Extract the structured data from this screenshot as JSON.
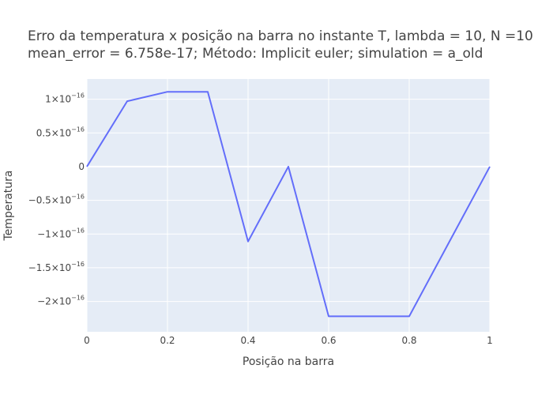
{
  "chart_data": {
    "type": "line",
    "title": {
      "line1": "Erro da temperatura x posição na barra no instante T, lambda = 10, N =10",
      "line2": "mean_error = 6.758e-17; Método: Implicit euler; simulation = a_old"
    },
    "xlabel": "Posição na barra",
    "ylabel": "Temperatura",
    "xlim": [
      0,
      1
    ],
    "ylim": [
      -2.45e-16,
      1.3e-16
    ],
    "grid": true,
    "colors": {
      "plot_bg": "#e5ecf6",
      "grid": "#ffffff",
      "line": "#636efa",
      "text": "#444444"
    },
    "x_ticks": [
      {
        "value": 0,
        "label": "0"
      },
      {
        "value": 0.2,
        "label": "0.2"
      },
      {
        "value": 0.4,
        "label": "0.4"
      },
      {
        "value": 0.6,
        "label": "0.6"
      },
      {
        "value": 0.8,
        "label": "0.8"
      },
      {
        "value": 1,
        "label": "1"
      }
    ],
    "y_ticks": [
      {
        "value": 1e-16,
        "base": "1×10",
        "exp": "−16"
      },
      {
        "value": 5e-17,
        "base": "0.5×10",
        "exp": "−16"
      },
      {
        "value": 0,
        "base": "0",
        "exp": ""
      },
      {
        "value": -5e-17,
        "base": "−0.5×10",
        "exp": "−16"
      },
      {
        "value": -1e-16,
        "base": "−1×10",
        "exp": "−16"
      },
      {
        "value": -1.5e-16,
        "base": "−1.5×10",
        "exp": "−16"
      },
      {
        "value": -2e-16,
        "base": "−2×10",
        "exp": "−16"
      }
    ],
    "x": [
      0,
      0.1,
      0.2,
      0.3,
      0.4,
      0.5,
      0.6,
      0.7,
      0.8,
      0.9,
      1.0
    ],
    "y": [
      0,
      9.7e-17,
      1.11e-16,
      1.11e-16,
      -1.11e-16,
      0,
      -2.22e-16,
      -2.22e-16,
      -2.22e-16,
      -1.11e-16,
      0
    ]
  }
}
